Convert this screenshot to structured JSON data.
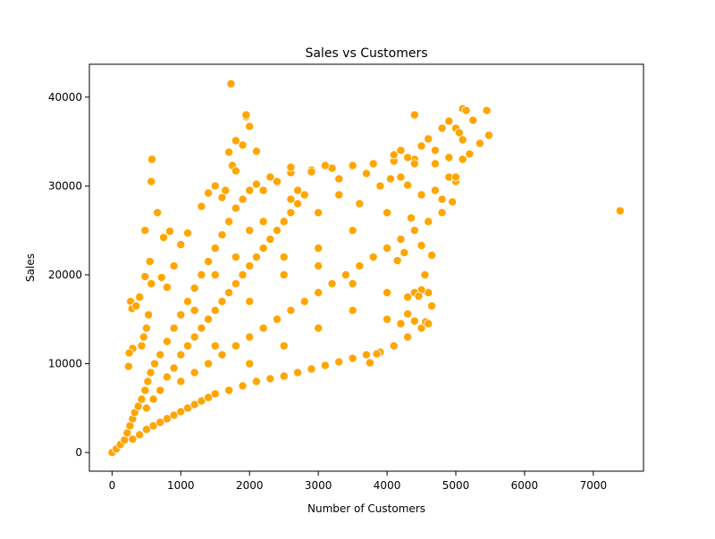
{
  "chart_data": {
    "type": "scatter",
    "title": "Sales vs Customers",
    "xlabel": "Number of Customers",
    "ylabel": "Sales",
    "xlim": [
      -330,
      7730
    ],
    "ylim": [
      -2100,
      43700
    ],
    "xticks": [
      0,
      1000,
      2000,
      3000,
      4000,
      5000,
      6000,
      7000
    ],
    "xtick_labels": [
      "0",
      "1000",
      "2000",
      "3000",
      "4000",
      "5000",
      "6000",
      "7000"
    ],
    "yticks": [
      0,
      10000,
      20000,
      30000,
      40000
    ],
    "ytick_labels": [
      "0",
      "10000",
      "20000",
      "30000",
      "40000"
    ],
    "grid": false,
    "marker_color": "#FFA500",
    "marker_edge_color": "#ffffff",
    "points": [
      [
        0,
        0
      ],
      [
        60,
        400
      ],
      [
        120,
        900
      ],
      [
        180,
        1400
      ],
      [
        220,
        2200
      ],
      [
        260,
        3000
      ],
      [
        300,
        3800
      ],
      [
        330,
        4500
      ],
      [
        380,
        5200
      ],
      [
        430,
        6000
      ],
      [
        480,
        7000
      ],
      [
        520,
        8000
      ],
      [
        560,
        9000
      ],
      [
        620,
        10000
      ],
      [
        700,
        11000
      ],
      [
        800,
        12500
      ],
      [
        900,
        14000
      ],
      [
        1000,
        15500
      ],
      [
        1100,
        17000
      ],
      [
        1200,
        18500
      ],
      [
        1300,
        20000
      ],
      [
        1400,
        21500
      ],
      [
        1500,
        23000
      ],
      [
        1600,
        24500
      ],
      [
        1700,
        26000
      ],
      [
        1800,
        27500
      ],
      [
        1900,
        28500
      ],
      [
        2000,
        29500
      ],
      [
        2100,
        30200
      ],
      [
        2300,
        31000
      ],
      [
        2600,
        31500
      ],
      [
        2900,
        31800
      ],
      [
        3200,
        32000
      ],
      [
        3500,
        32300
      ],
      [
        3800,
        32500
      ],
      [
        4100,
        32800
      ],
      [
        4400,
        33000
      ],
      [
        4700,
        32500
      ],
      [
        4900,
        31000
      ],
      [
        300,
        1500
      ],
      [
        400,
        2000
      ],
      [
        500,
        2600
      ],
      [
        600,
        3000
      ],
      [
        700,
        3400
      ],
      [
        800,
        3800
      ],
      [
        900,
        4200
      ],
      [
        1000,
        4600
      ],
      [
        1100,
        5000
      ],
      [
        1200,
        5400
      ],
      [
        1300,
        5800
      ],
      [
        1400,
        6200
      ],
      [
        1500,
        6600
      ],
      [
        1700,
        7000
      ],
      [
        1900,
        7500
      ],
      [
        2100,
        8000
      ],
      [
        2300,
        8300
      ],
      [
        2500,
        8600
      ],
      [
        2700,
        9000
      ],
      [
        2900,
        9400
      ],
      [
        3100,
        9800
      ],
      [
        3300,
        10200
      ],
      [
        3500,
        10600
      ],
      [
        3700,
        11000
      ],
      [
        3900,
        11300
      ],
      [
        4100,
        12000
      ],
      [
        4300,
        13000
      ],
      [
        4500,
        14000
      ],
      [
        4600,
        14600
      ],
      [
        4650,
        16500
      ],
      [
        4600,
        18000
      ],
      [
        4500,
        18300
      ],
      [
        4400,
        18000
      ],
      [
        4300,
        17500
      ],
      [
        500,
        5000
      ],
      [
        600,
        6000
      ],
      [
        700,
        7000
      ],
      [
        800,
        8500
      ],
      [
        900,
        9500
      ],
      [
        1000,
        11000
      ],
      [
        1100,
        12000
      ],
      [
        1200,
        13000
      ],
      [
        1300,
        14000
      ],
      [
        1400,
        15000
      ],
      [
        1500,
        16000
      ],
      [
        1600,
        17000
      ],
      [
        1700,
        18000
      ],
      [
        1800,
        19000
      ],
      [
        1900,
        20000
      ],
      [
        2000,
        21000
      ],
      [
        2100,
        22000
      ],
      [
        2200,
        23000
      ],
      [
        2300,
        24000
      ],
      [
        2400,
        25000
      ],
      [
        2500,
        26000
      ],
      [
        2600,
        27000
      ],
      [
        2700,
        28000
      ],
      [
        2800,
        29000
      ],
      [
        1000,
        8000
      ],
      [
        1200,
        9000
      ],
      [
        1400,
        10000
      ],
      [
        1600,
        11000
      ],
      [
        1800,
        12000
      ],
      [
        2000,
        13000
      ],
      [
        2200,
        14000
      ],
      [
        2400,
        15000
      ],
      [
        2600,
        16000
      ],
      [
        2800,
        17000
      ],
      [
        3000,
        18000
      ],
      [
        3200,
        19000
      ],
      [
        3400,
        20000
      ],
      [
        3600,
        21000
      ],
      [
        3800,
        22000
      ],
      [
        4000,
        23000
      ],
      [
        4200,
        24000
      ],
      [
        4400,
        25000
      ],
      [
        4600,
        26000
      ],
      [
        4800,
        27000
      ],
      [
        1500,
        12000
      ],
      [
        2000,
        17000
      ],
      [
        2500,
        20000
      ],
      [
        3000,
        23000
      ],
      [
        3500,
        25000
      ],
      [
        4000,
        27000
      ],
      [
        4500,
        29000
      ],
      [
        5000,
        30500
      ],
      [
        1200,
        16000
      ],
      [
        1500,
        20000
      ],
      [
        1800,
        22000
      ],
      [
        2200,
        26000
      ],
      [
        2600,
        28500
      ],
      [
        3000,
        27000
      ],
      [
        3300,
        29000
      ],
      [
        3600,
        28000
      ],
      [
        3900,
        30000
      ],
      [
        4200,
        31000
      ],
      [
        2000,
        10000
      ],
      [
        2500,
        12000
      ],
      [
        3000,
        14000
      ],
      [
        3500,
        16000
      ],
      [
        4000,
        18000
      ],
      [
        2000,
        25000
      ],
      [
        2500,
        22000
      ],
      [
        3000,
        21000
      ],
      [
        3500,
        19000
      ],
      [
        4000,
        15000
      ],
      [
        4100,
        33500
      ],
      [
        4200,
        34000
      ],
      [
        4300,
        33200
      ],
      [
        4400,
        32500
      ],
      [
        4500,
        34500
      ],
      [
        4600,
        35300
      ],
      [
        4700,
        34000
      ],
      [
        4800,
        36500
      ],
      [
        4900,
        37300
      ],
      [
        5000,
        36500
      ],
      [
        5050,
        36000
      ],
      [
        5100,
        35200
      ],
      [
        5100,
        38700
      ],
      [
        5150,
        38500
      ],
      [
        5200,
        33600
      ],
      [
        5250,
        37400
      ],
      [
        5350,
        34800
      ],
      [
        5450,
        38500
      ],
      [
        5480,
        35700
      ],
      [
        5000,
        31000
      ],
      [
        4900,
        33200
      ],
      [
        5100,
        33000
      ],
      [
        4700,
        29500
      ],
      [
        4800,
        28500
      ],
      [
        4950,
        28200
      ],
      [
        4650,
        22200
      ],
      [
        4500,
        23300
      ],
      [
        4550,
        20000
      ],
      [
        4400,
        25000
      ],
      [
        4400,
        38000
      ],
      [
        7390,
        27200
      ],
      [
        1730,
        41500
      ],
      [
        1950,
        37800
      ],
      [
        1950,
        38000
      ],
      [
        2000,
        36700
      ],
      [
        1900,
        34600
      ],
      [
        1800,
        35100
      ],
      [
        1700,
        33800
      ],
      [
        2100,
        33900
      ],
      [
        1750,
        32300
      ],
      [
        1800,
        31700
      ],
      [
        2600,
        32100
      ],
      [
        2900,
        31600
      ],
      [
        3100,
        32300
      ],
      [
        580,
        33000
      ],
      [
        570,
        30500
      ],
      [
        660,
        27000
      ],
      [
        550,
        21500
      ],
      [
        480,
        25000
      ],
      [
        750,
        24200
      ],
      [
        840,
        24900
      ],
      [
        480,
        19800
      ],
      [
        570,
        19000
      ],
      [
        400,
        17500
      ],
      [
        270,
        17000
      ],
      [
        290,
        16200
      ],
      [
        350,
        16500
      ],
      [
        300,
        11700
      ],
      [
        250,
        11200
      ],
      [
        240,
        9700
      ],
      [
        500,
        14000
      ],
      [
        530,
        15500
      ],
      [
        460,
        13000
      ],
      [
        430,
        12000
      ],
      [
        720,
        19700
      ],
      [
        800,
        18600
      ],
      [
        900,
        21000
      ],
      [
        1000,
        23400
      ],
      [
        1100,
        24700
      ],
      [
        1300,
        27700
      ],
      [
        1400,
        29200
      ],
      [
        1500,
        30000
      ],
      [
        1600,
        28700
      ],
      [
        1650,
        29500
      ],
      [
        3900,
        11300
      ],
      [
        3750,
        10100
      ],
      [
        3850,
        11100
      ],
      [
        4300,
        15600
      ],
      [
        4200,
        14500
      ],
      [
        4400,
        14800
      ],
      [
        4560,
        14700
      ],
      [
        4600,
        14500
      ],
      [
        4460,
        17600
      ],
      [
        2200,
        29500
      ],
      [
        2400,
        30500
      ],
      [
        2700,
        29500
      ],
      [
        3300,
        30800
      ],
      [
        3700,
        31400
      ],
      [
        4050,
        30800
      ],
      [
        4300,
        30100
      ],
      [
        4350,
        26400
      ],
      [
        4250,
        22500
      ],
      [
        4150,
        21600
      ]
    ]
  }
}
